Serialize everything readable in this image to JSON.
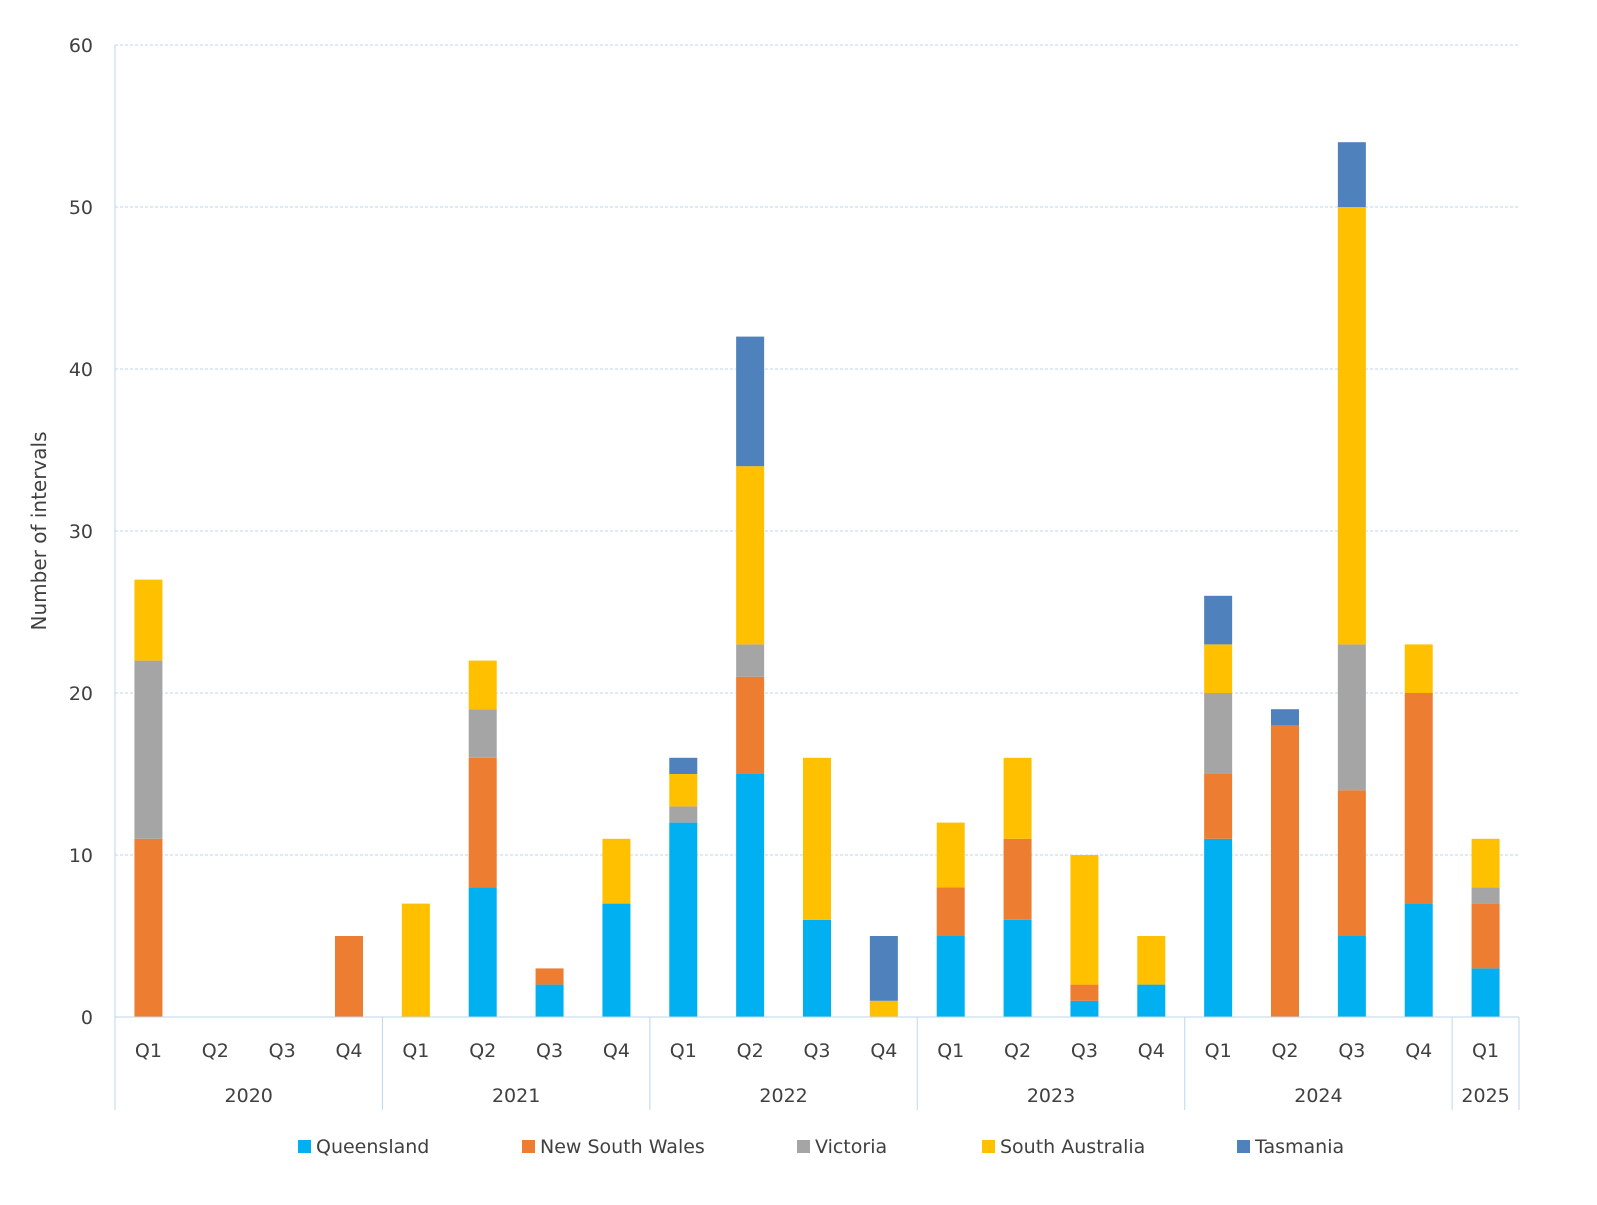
{
  "chart_data": {
    "type": "bar",
    "stacked": true,
    "title": "",
    "ylabel": "Number of intervals",
    "xlabel": "",
    "ylim": [
      0,
      60
    ],
    "yticks": [
      0,
      10,
      20,
      30,
      40,
      50,
      60
    ],
    "grid": true,
    "legend_position": "bottom",
    "categories": [
      "Q1",
      "Q2",
      "Q3",
      "Q4",
      "Q1",
      "Q2",
      "Q3",
      "Q4",
      "Q1",
      "Q2",
      "Q3",
      "Q4",
      "Q1",
      "Q2",
      "Q3",
      "Q4",
      "Q1",
      "Q2",
      "Q3",
      "Q4",
      "Q1"
    ],
    "year_groups": [
      {
        "label": "2020",
        "count": 4
      },
      {
        "label": "2021",
        "count": 4
      },
      {
        "label": "2022",
        "count": 4
      },
      {
        "label": "2023",
        "count": 4
      },
      {
        "label": "2024",
        "count": 4
      },
      {
        "label": "2025",
        "count": 1
      }
    ],
    "series": [
      {
        "name": "Queensland",
        "color": "#00B0F0",
        "values": [
          0,
          0,
          0,
          0,
          0,
          8,
          2,
          7,
          12,
          15,
          6,
          0,
          5,
          6,
          1,
          2,
          11,
          0,
          5,
          7,
          3
        ]
      },
      {
        "name": "New South Wales",
        "color": "#ED7D31",
        "values": [
          11,
          0,
          0,
          5,
          0,
          8,
          1,
          0,
          0,
          6,
          0,
          0,
          3,
          5,
          1,
          0,
          4,
          18,
          9,
          13,
          4
        ]
      },
      {
        "name": "Victoria",
        "color": "#A5A5A5",
        "values": [
          11,
          0,
          0,
          0,
          0,
          3,
          0,
          0,
          1,
          2,
          0,
          0,
          0,
          0,
          0,
          0,
          5,
          0,
          9,
          0,
          1
        ]
      },
      {
        "name": "South Australia",
        "color": "#FFC000",
        "values": [
          5,
          0,
          0,
          0,
          7,
          3,
          0,
          4,
          2,
          11,
          10,
          1,
          4,
          5,
          8,
          3,
          3,
          0,
          27,
          3,
          3
        ]
      },
      {
        "name": "Tasmania",
        "color": "#4F81BD",
        "values": [
          0,
          0,
          0,
          0,
          0,
          0,
          0,
          0,
          1,
          8,
          0,
          4,
          0,
          0,
          0,
          0,
          3,
          1,
          4,
          0,
          0
        ]
      }
    ]
  }
}
